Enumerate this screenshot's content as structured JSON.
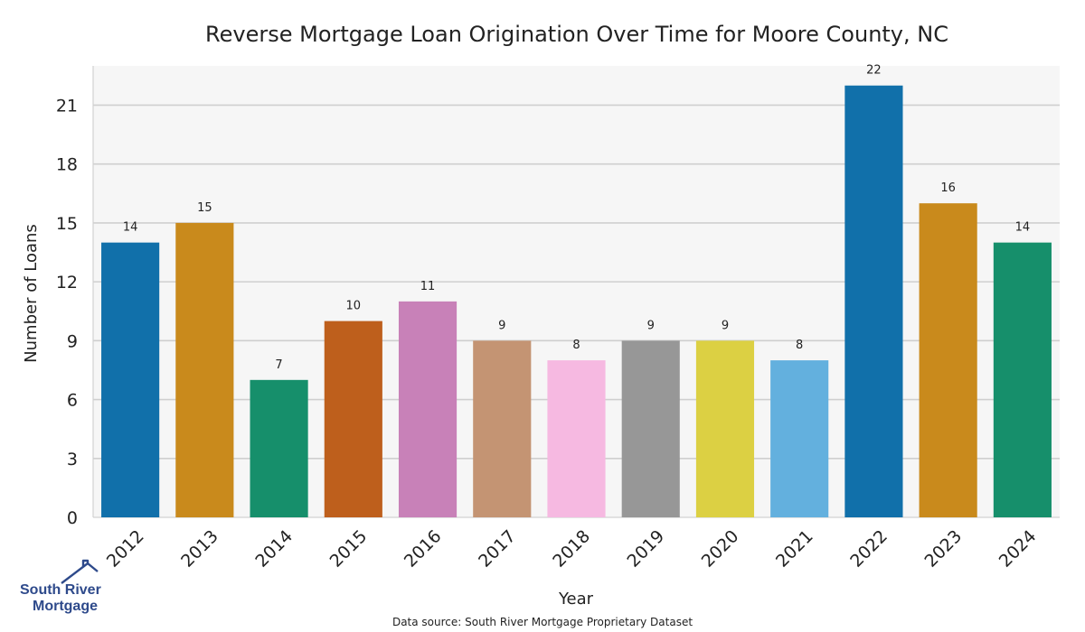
{
  "chart_data": {
    "type": "bar",
    "title": "Reverse Mortgage Loan Origination Over Time for Moore County, NC",
    "xlabel": "Year",
    "ylabel": "Number of Loans",
    "categories": [
      "2012",
      "2013",
      "2014",
      "2015",
      "2016",
      "2017",
      "2018",
      "2019",
      "2020",
      "2021",
      "2022",
      "2023",
      "2024"
    ],
    "values": [
      14,
      15,
      7,
      10,
      11,
      9,
      8,
      9,
      9,
      8,
      22,
      16,
      14
    ],
    "colors": [
      "#1170aa",
      "#c98a1c",
      "#168f6b",
      "#be5f1c",
      "#c881b8",
      "#c49473",
      "#f6b9e1",
      "#979797",
      "#dcd043",
      "#63b0de",
      "#1170aa",
      "#c98a1c",
      "#168f6b"
    ],
    "ylim": [
      0,
      23
    ],
    "yticks": [
      0,
      3,
      6,
      9,
      12,
      15,
      18,
      21
    ],
    "grid": true,
    "background": "#f6f6f6"
  },
  "source_note": "Data source: South River Mortgage Proprietary Dataset",
  "logo": {
    "line1": "South River",
    "line2": "Mortgage"
  }
}
